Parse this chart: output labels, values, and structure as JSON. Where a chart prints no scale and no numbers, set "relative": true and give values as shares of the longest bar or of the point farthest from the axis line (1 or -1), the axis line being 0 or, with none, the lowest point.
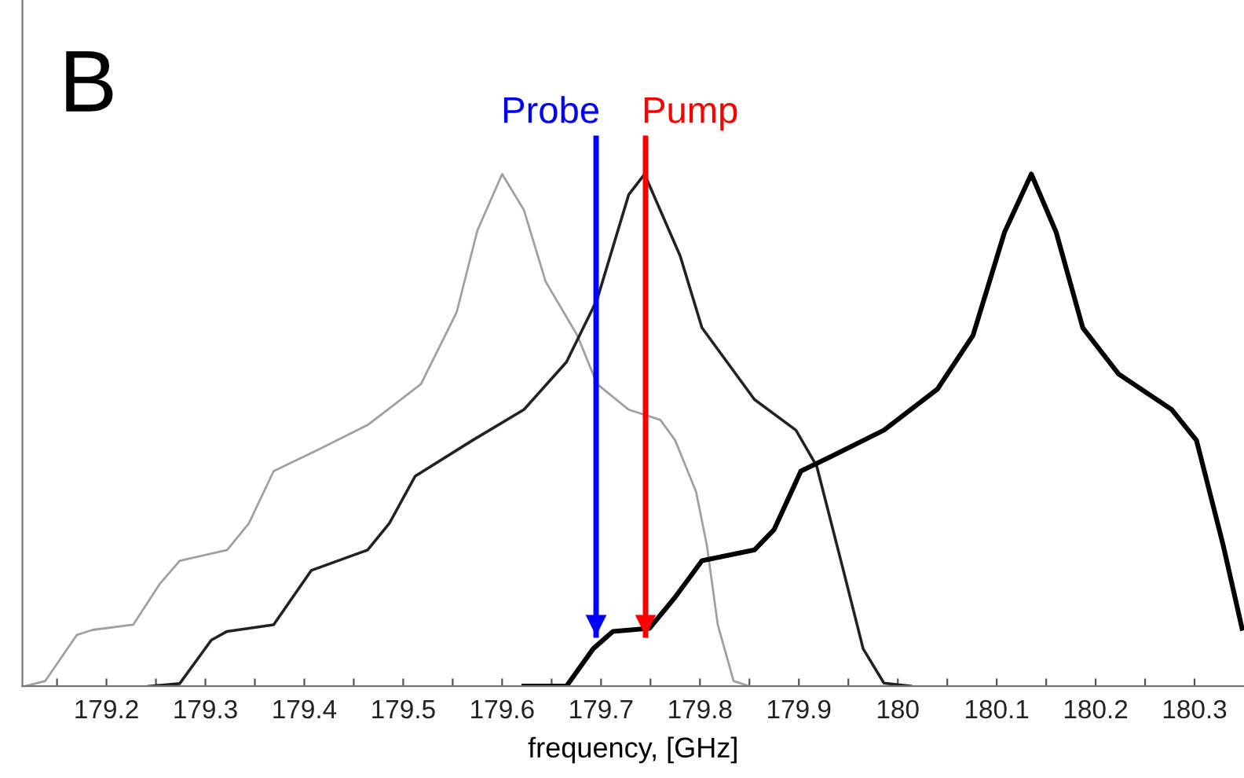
{
  "chart_data": {
    "type": "line",
    "relative": true,
    "xlabel": "frequency, [GHz]",
    "annotations": [
      "B"
    ],
    "xlim": [
      179.115,
      180.35
    ],
    "xticks": [
      {
        "value": 179.15,
        "label": null
      },
      179.2,
      {
        "value": 179.25,
        "label": null
      },
      179.3,
      {
        "value": 179.35,
        "label": null
      },
      179.4,
      {
        "value": 179.45,
        "label": null
      },
      179.5,
      {
        "value": 179.55,
        "label": null
      },
      179.6,
      {
        "value": 179.65,
        "label": null
      },
      179.7,
      {
        "value": 179.75,
        "label": null
      },
      179.8,
      {
        "value": 179.85,
        "label": null
      },
      179.9,
      {
        "value": 179.95,
        "label": null
      },
      180,
      {
        "value": 180.05,
        "label": null
      },
      180.1,
      {
        "value": 180.15,
        "label": null
      },
      180.2,
      {
        "value": 180.25,
        "label": null
      },
      180.3
    ],
    "grid": false,
    "legend": false,
    "marker": "none",
    "line_style": "solid",
    "ref_lines": [
      {
        "axis": "x",
        "value": 179.695,
        "label": "Probe",
        "color": "#0000ff"
      },
      {
        "axis": "x",
        "value": 179.745,
        "label": "Pump",
        "color": "#ff0000"
      }
    ],
    "series": [
      {
        "color": "#a0a0a0",
        "x": [
          179.118,
          179.138,
          179.17,
          179.186,
          179.227,
          179.254,
          179.274,
          179.322,
          179.344,
          179.369,
          179.412,
          179.464,
          179.518,
          179.554,
          179.575,
          179.6,
          179.622,
          179.644,
          179.676,
          179.696,
          179.728,
          179.76,
          179.775,
          179.796,
          179.807,
          179.818,
          179.834,
          179.85
        ],
        "values": [
          0,
          0.01,
          0.1,
          0.11,
          0.12,
          0.2,
          0.245,
          0.266,
          0.318,
          0.42,
          0.46,
          0.51,
          0.59,
          0.73,
          0.89,
          1.0,
          0.93,
          0.79,
          0.685,
          0.59,
          0.54,
          0.52,
          0.48,
          0.38,
          0.275,
          0.12,
          0.01,
          0
        ]
      },
      {
        "color": "#222222",
        "x": [
          179.243,
          179.274,
          179.306,
          179.322,
          179.369,
          179.407,
          179.464,
          179.486,
          179.512,
          179.57,
          179.622,
          179.665,
          179.696,
          179.728,
          179.744,
          179.78,
          179.802,
          179.855,
          179.897,
          179.918,
          179.945,
          179.965,
          179.986,
          180.013
        ],
        "values": [
          0,
          0.005,
          0.09,
          0.107,
          0.12,
          0.226,
          0.266,
          0.318,
          0.41,
          0.48,
          0.54,
          0.633,
          0.755,
          0.96,
          1.0,
          0.84,
          0.7,
          0.56,
          0.5,
          0.43,
          0.226,
          0.073,
          0.006,
          0
        ]
      },
      {
        "color": "#000000",
        "x": [
          179.622,
          179.665,
          179.692,
          179.712,
          179.749,
          179.775,
          179.802,
          179.855,
          179.875,
          179.902,
          179.934,
          179.986,
          180.04,
          180.076,
          180.108,
          180.135,
          180.16,
          180.187,
          180.223,
          180.277,
          180.302,
          180.329,
          180.348
        ],
        "values": [
          0,
          0,
          0.073,
          0.107,
          0.113,
          0.174,
          0.245,
          0.266,
          0.306,
          0.42,
          0.45,
          0.5,
          0.58,
          0.685,
          0.887,
          1.0,
          0.887,
          0.7,
          0.61,
          0.54,
          0.48,
          0.275,
          0.113
        ]
      }
    ]
  }
}
